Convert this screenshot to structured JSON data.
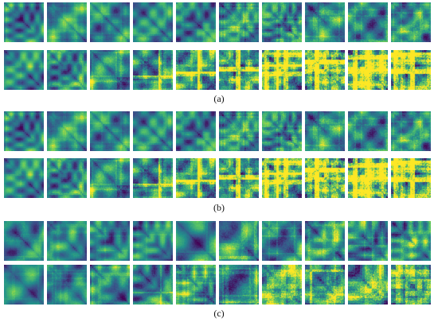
{
  "panels": [
    {
      "caption": "(a)"
    },
    {
      "caption": "(b)"
    },
    {
      "caption": "(c)"
    }
  ],
  "colors": {
    "viridis_dark": "#440154",
    "viridis_blue": "#31688e",
    "viridis_teal": "#21918c",
    "viridis_green": "#35b779",
    "viridis_yellow": "#fde725"
  }
}
